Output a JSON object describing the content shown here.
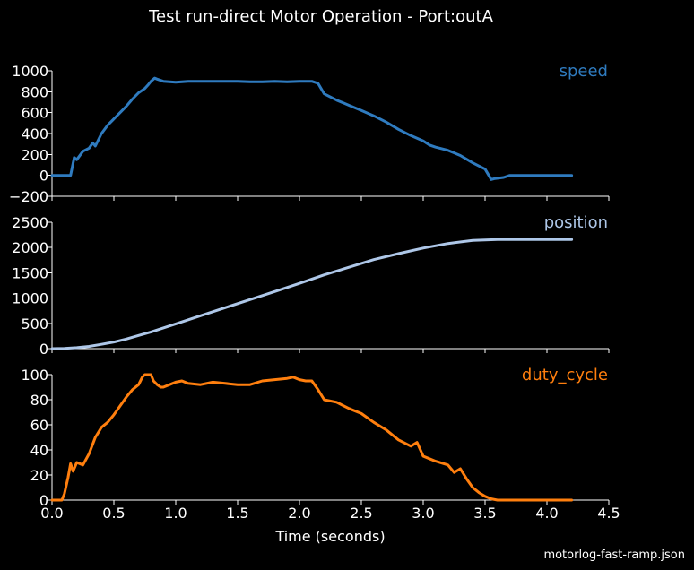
{
  "title": "Test run-direct Motor Operation - Port:outA",
  "footer": "motorlog-fast-ramp.json",
  "chart_data": [
    {
      "type": "line",
      "series": [
        {
          "name": "speed",
          "color": "#2f7bbf",
          "x": [
            0,
            0.15,
            0.18,
            0.2,
            0.25,
            0.3,
            0.33,
            0.35,
            0.4,
            0.45,
            0.5,
            0.55,
            0.6,
            0.65,
            0.7,
            0.75,
            0.78,
            0.8,
            0.83,
            0.85,
            0.9,
            1.0,
            1.1,
            1.2,
            1.3,
            1.4,
            1.5,
            1.6,
            1.7,
            1.8,
            1.9,
            2.0,
            2.05,
            2.1,
            2.15,
            2.2,
            2.3,
            2.4,
            2.5,
            2.6,
            2.7,
            2.8,
            2.9,
            3.0,
            3.05,
            3.1,
            3.2,
            3.3,
            3.4,
            3.5,
            3.55,
            3.58,
            3.65,
            3.7,
            3.75,
            3.8,
            3.9,
            4.0,
            4.1,
            4.2
          ],
          "y": [
            0,
            0,
            170,
            150,
            230,
            260,
            310,
            280,
            400,
            480,
            540,
            600,
            660,
            730,
            790,
            830,
            870,
            900,
            930,
            920,
            900,
            890,
            900,
            900,
            900,
            900,
            900,
            895,
            895,
            900,
            895,
            900,
            900,
            900,
            880,
            780,
            720,
            670,
            620,
            570,
            510,
            440,
            380,
            330,
            290,
            270,
            240,
            190,
            120,
            60,
            -40,
            -30,
            -20,
            0,
            0,
            0,
            0,
            0,
            0,
            0
          ]
        }
      ],
      "ylim": [
        -200,
        1000
      ],
      "yticks": [
        "−200",
        "0",
        "200",
        "400",
        "600",
        "800",
        "1000"
      ],
      "xlim": [
        0,
        4.5
      ]
    },
    {
      "type": "line",
      "series": [
        {
          "name": "position",
          "color": "#aec7e8",
          "x": [
            0,
            0.1,
            0.2,
            0.3,
            0.4,
            0.5,
            0.6,
            0.7,
            0.8,
            0.9,
            1.0,
            1.2,
            1.4,
            1.6,
            1.8,
            2.0,
            2.2,
            2.4,
            2.6,
            2.8,
            3.0,
            3.2,
            3.4,
            3.6,
            3.8,
            4.0,
            4.2
          ],
          "y": [
            0,
            5,
            20,
            45,
            85,
            130,
            190,
            260,
            330,
            410,
            490,
            650,
            810,
            970,
            1130,
            1290,
            1460,
            1610,
            1760,
            1880,
            1990,
            2080,
            2140,
            2160,
            2160,
            2160,
            2160
          ]
        }
      ],
      "ylim": [
        0,
        2500
      ],
      "yticks": [
        "0",
        "500",
        "1000",
        "1500",
        "2000",
        "2500"
      ],
      "xlim": [
        0,
        4.5
      ]
    },
    {
      "type": "line",
      "series": [
        {
          "name": "duty_cycle",
          "color": "#ff7f0e",
          "x": [
            0,
            0.08,
            0.1,
            0.13,
            0.15,
            0.17,
            0.2,
            0.25,
            0.3,
            0.35,
            0.4,
            0.45,
            0.5,
            0.55,
            0.6,
            0.65,
            0.7,
            0.73,
            0.75,
            0.78,
            0.8,
            0.82,
            0.85,
            0.88,
            0.9,
            0.95,
            1.0,
            1.05,
            1.1,
            1.2,
            1.3,
            1.4,
            1.5,
            1.6,
            1.7,
            1.8,
            1.9,
            1.95,
            2.0,
            2.05,
            2.1,
            2.15,
            2.2,
            2.3,
            2.4,
            2.5,
            2.6,
            2.7,
            2.8,
            2.9,
            2.95,
            3.0,
            3.05,
            3.1,
            3.2,
            3.25,
            3.3,
            3.35,
            3.4,
            3.45,
            3.5,
            3.55,
            3.6,
            3.7,
            3.8,
            4.0,
            4.2
          ],
          "y": [
            0,
            0,
            5,
            18,
            29,
            23,
            30,
            28,
            37,
            50,
            58,
            62,
            68,
            75,
            82,
            88,
            92,
            98,
            100,
            100,
            100,
            95,
            92,
            90,
            90,
            92,
            94,
            95,
            93,
            92,
            94,
            93,
            92,
            92,
            95,
            96,
            97,
            98,
            96,
            95,
            95,
            88,
            80,
            78,
            73,
            69,
            62,
            56,
            48,
            43,
            46,
            35,
            33,
            31,
            28,
            22,
            25,
            17,
            10,
            6,
            3,
            1,
            0,
            0,
            0,
            0,
            0
          ]
        }
      ],
      "ylim": [
        0,
        100
      ],
      "yticks": [
        "0",
        "20",
        "40",
        "60",
        "80",
        "100"
      ],
      "xlim": [
        0,
        4.5
      ],
      "xticks": [
        "0.0",
        "0.5",
        "1.0",
        "1.5",
        "2.0",
        "2.5",
        "3.0",
        "3.5",
        "4.0",
        "4.5"
      ],
      "xlabel": "Time (seconds)"
    }
  ]
}
